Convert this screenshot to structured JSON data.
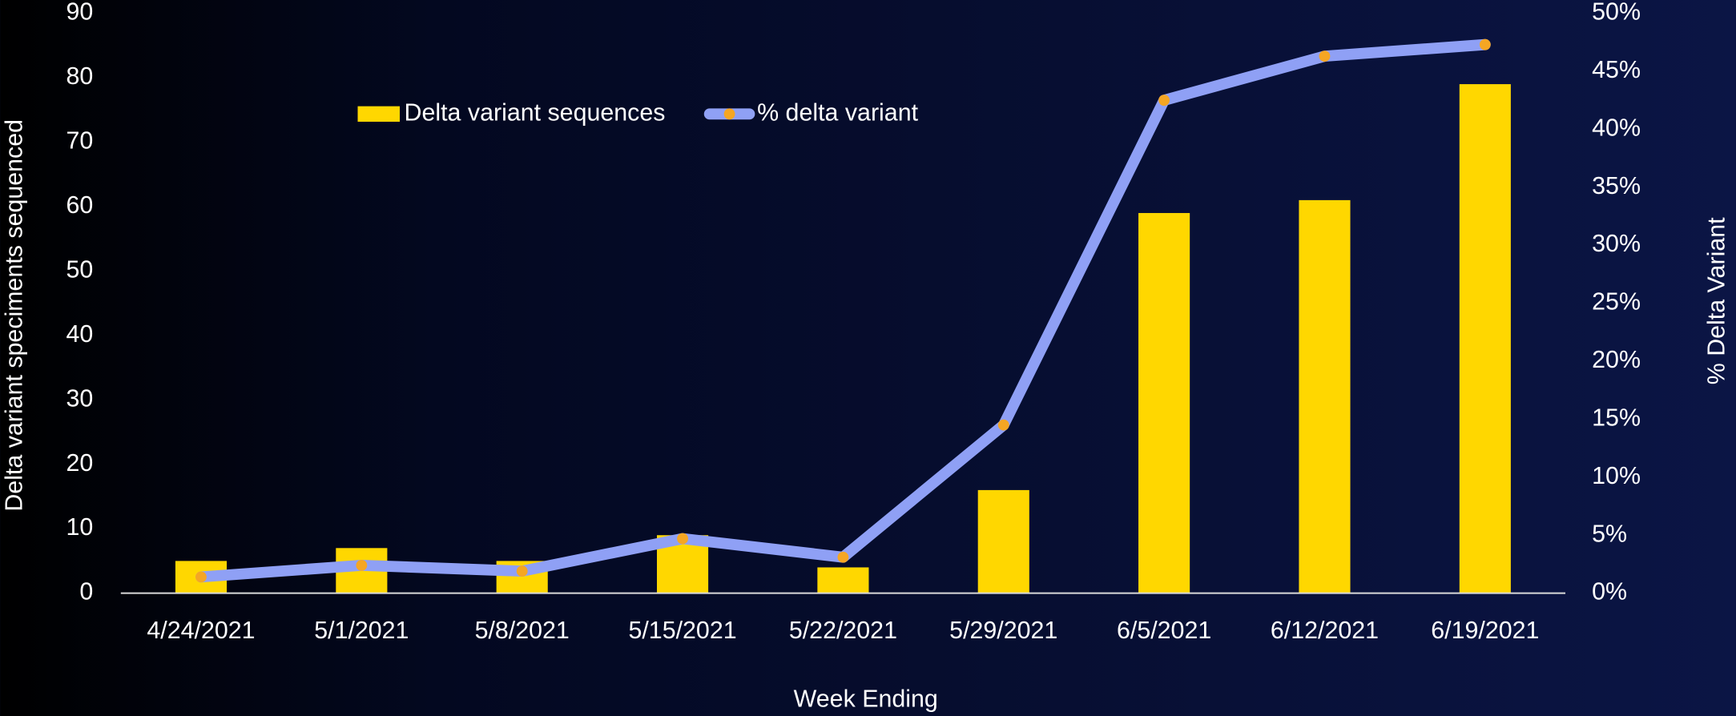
{
  "chart_data": {
    "type": "bar",
    "categories": [
      "4/24/2021",
      "5/1/2021",
      "5/8/2021",
      "5/15/2021",
      "5/22/2021",
      "5/29/2021",
      "6/5/2021",
      "6/12/2021",
      "6/19/2021"
    ],
    "series": [
      {
        "name": "Delta variant sequences",
        "type": "bar",
        "color": "#ffd700",
        "values": [
          5,
          7,
          5,
          9,
          4,
          16,
          59,
          61,
          79
        ]
      },
      {
        "name": "% delta variant",
        "type": "line",
        "axis": "y2",
        "color": "#8fa0f5",
        "marker_color": "#f5a623",
        "values": [
          1.4,
          2.4,
          1.9,
          4.7,
          3.1,
          14.5,
          42.5,
          46.3,
          47.3
        ]
      }
    ],
    "x_label": "Week Ending",
    "y_label": "Delta variant speciments sequenced",
    "y2_label": "% Delta Variant",
    "ylim": [
      0,
      90
    ],
    "yticks": [
      0,
      10,
      20,
      30,
      40,
      50,
      60,
      70,
      80,
      90
    ],
    "y2lim": [
      0,
      50
    ],
    "y2ticks": [
      {
        "value": 0,
        "label": "0%"
      },
      {
        "value": 5,
        "label": "5%"
      },
      {
        "value": 10,
        "label": "10%"
      },
      {
        "value": 15,
        "label": "15%"
      },
      {
        "value": 20,
        "label": "20%"
      },
      {
        "value": 25,
        "label": "25%"
      },
      {
        "value": 30,
        "label": "30%"
      },
      {
        "value": 35,
        "label": "35%"
      },
      {
        "value": 40,
        "label": "40%"
      },
      {
        "value": 45,
        "label": "45%"
      },
      {
        "value": 50,
        "label": "50%"
      }
    ],
    "grid": false,
    "legend": "top"
  }
}
